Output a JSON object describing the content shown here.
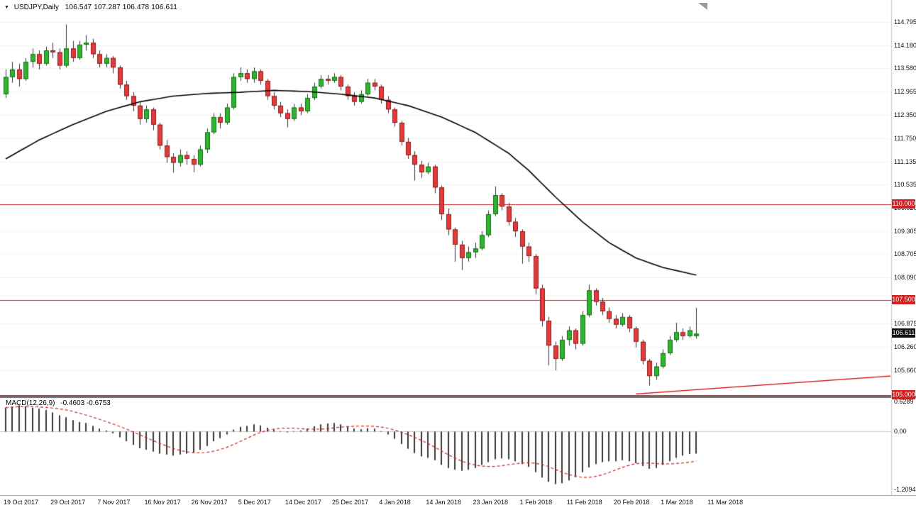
{
  "header": {
    "dropdown_icon": "▼",
    "symbol": "USDJPY,Daily",
    "ohlc": "106.547 107.287 106.478 106.611"
  },
  "indicator_label": {
    "name": "MACD(12,26,9)",
    "values": "-0.4603 -0.6753"
  },
  "colors": {
    "bull": "#2eb52e",
    "bull_border": "#157015",
    "bear": "#e23b3b",
    "bear_border": "#8f1b1b",
    "wick": "#333333",
    "ma": "#000000",
    "level_line": "#d21f1f",
    "trendline": "#cc0000",
    "tag_red_bg": "#d21f1f",
    "tag_current_bg": "#111111",
    "macd_hist": "#3a3a3a",
    "macd_signal": "#cc2222",
    "grid": "#f2f2f2",
    "separator": "#6b6b6b",
    "axis_border": "#999999"
  },
  "chart_data": {
    "type": "candlestick",
    "title": "USDJPY Daily with 100-period MA, horizontal levels, rising trendline and MACD(12,26,9)",
    "symbol": "USDJPY",
    "timeframe": "Daily",
    "last_ohlc": {
      "open": 106.547,
      "high": 107.287,
      "low": 106.478,
      "close": 106.611
    },
    "x_labels": [
      "19 Oct 2017",
      "29 Oct 2017",
      "7 Nov 2017",
      "16 Nov 2017",
      "26 Nov 2017",
      "5 Dec 2017",
      "14 Dec 2017",
      "25 Dec 2017",
      "4 Jan 2018",
      "14 Jan 2018",
      "23 Jan 2018",
      "1 Feb 2018",
      "11 Feb 2018",
      "20 Feb 2018",
      "1 Mar 2018",
      "11 Mar 2018"
    ],
    "candles_per_label": 7,
    "price_ticks": [
      "114.795",
      "114.180",
      "113.580",
      "112.965",
      "112.350",
      "111.750",
      "111.135",
      "110.535",
      "109.920",
      "109.305",
      "108.705",
      "108.090",
      "106.875",
      "106.260",
      "105.660"
    ],
    "level_lines": [
      {
        "price": 110.0,
        "label": "110.000"
      },
      {
        "price": 107.5,
        "label": "107.500"
      },
      {
        "price": 105.0,
        "label": "105.000"
      }
    ],
    "current_price": {
      "price": 106.611,
      "label": "106.611"
    },
    "trendline": {
      "from_index": 94,
      "from_price": 105.03,
      "to_price_at_right_edge": 105.5
    },
    "moving_average": {
      "style": "solid-black",
      "points": [
        [
          0,
          111.2
        ],
        [
          5,
          111.7
        ],
        [
          10,
          112.1
        ],
        [
          15,
          112.45
        ],
        [
          20,
          112.7
        ],
        [
          25,
          112.85
        ],
        [
          30,
          112.92
        ],
        [
          35,
          112.95
        ],
        [
          40,
          113.0
        ],
        [
          45,
          112.97
        ],
        [
          50,
          112.9
        ],
        [
          55,
          112.8
        ],
        [
          60,
          112.6
        ],
        [
          65,
          112.3
        ],
        [
          70,
          111.9
        ],
        [
          75,
          111.35
        ],
        [
          78,
          110.9
        ],
        [
          82,
          110.2
        ],
        [
          86,
          109.55
        ],
        [
          90,
          109.0
        ],
        [
          94,
          108.6
        ],
        [
          98,
          108.35
        ],
        [
          103,
          108.15
        ]
      ]
    },
    "candles": [
      [
        112.9,
        113.55,
        112.8,
        113.35
      ],
      [
        113.35,
        113.75,
        113.2,
        113.55
      ],
      [
        113.55,
        113.7,
        113.1,
        113.3
      ],
      [
        113.3,
        113.85,
        113.25,
        113.75
      ],
      [
        113.75,
        114.1,
        113.6,
        113.95
      ],
      [
        113.95,
        114.05,
        113.55,
        113.7
      ],
      [
        113.7,
        114.15,
        113.65,
        114.05
      ],
      [
        114.05,
        114.25,
        113.85,
        114.0
      ],
      [
        114.0,
        114.1,
        113.55,
        113.65
      ],
      [
        113.65,
        114.73,
        113.6,
        114.1
      ],
      [
        114.1,
        114.3,
        113.75,
        113.85
      ],
      [
        113.85,
        114.3,
        113.8,
        114.2
      ],
      [
        114.2,
        114.45,
        114.05,
        114.25
      ],
      [
        114.25,
        114.35,
        113.85,
        113.95
      ],
      [
        113.95,
        114.05,
        113.6,
        113.7
      ],
      [
        113.7,
        113.95,
        113.6,
        113.85
      ],
      [
        113.85,
        113.9,
        113.45,
        113.6
      ],
      [
        113.6,
        113.65,
        113.05,
        113.15
      ],
      [
        113.15,
        113.25,
        112.75,
        112.85
      ],
      [
        112.85,
        112.95,
        112.45,
        112.6
      ],
      [
        112.6,
        112.7,
        112.1,
        112.25
      ],
      [
        112.25,
        112.6,
        112.15,
        112.5
      ],
      [
        112.5,
        112.55,
        111.95,
        112.1
      ],
      [
        112.1,
        112.15,
        111.45,
        111.55
      ],
      [
        111.55,
        111.7,
        111.1,
        111.25
      ],
      [
        111.25,
        111.35,
        110.84,
        111.1
      ],
      [
        111.1,
        111.45,
        111.0,
        111.3
      ],
      [
        111.3,
        111.4,
        111.05,
        111.2
      ],
      [
        111.2,
        111.3,
        110.85,
        111.05
      ],
      [
        111.05,
        111.55,
        111.0,
        111.45
      ],
      [
        111.45,
        112.0,
        111.35,
        111.9
      ],
      [
        111.9,
        112.4,
        111.85,
        112.3
      ],
      [
        112.3,
        112.4,
        112.0,
        112.15
      ],
      [
        112.15,
        112.65,
        112.1,
        112.55
      ],
      [
        112.55,
        113.45,
        112.5,
        113.35
      ],
      [
        113.35,
        113.6,
        113.25,
        113.45
      ],
      [
        113.45,
        113.55,
        113.2,
        113.3
      ],
      [
        113.3,
        113.6,
        113.2,
        113.5
      ],
      [
        113.5,
        113.55,
        113.15,
        113.25
      ],
      [
        113.25,
        113.3,
        112.75,
        112.85
      ],
      [
        112.85,
        112.95,
        112.5,
        112.6
      ],
      [
        112.6,
        112.7,
        112.3,
        112.4
      ],
      [
        112.4,
        112.5,
        112.03,
        112.25
      ],
      [
        112.25,
        112.65,
        112.2,
        112.55
      ],
      [
        112.55,
        112.65,
        112.35,
        112.45
      ],
      [
        112.45,
        112.9,
        112.4,
        112.8
      ],
      [
        112.8,
        113.2,
        112.75,
        113.1
      ],
      [
        113.1,
        113.4,
        113.05,
        113.3
      ],
      [
        113.3,
        113.4,
        113.15,
        113.25
      ],
      [
        113.25,
        113.45,
        113.2,
        113.35
      ],
      [
        113.35,
        113.4,
        113.0,
        113.1
      ],
      [
        113.1,
        113.15,
        112.75,
        112.85
      ],
      [
        112.85,
        112.95,
        112.6,
        112.7
      ],
      [
        112.7,
        113.0,
        112.65,
        112.9
      ],
      [
        112.9,
        113.3,
        112.85,
        113.2
      ],
      [
        113.2,
        113.3,
        113.0,
        113.1
      ],
      [
        113.1,
        113.15,
        112.65,
        112.75
      ],
      [
        112.75,
        112.85,
        112.4,
        112.5
      ],
      [
        112.5,
        112.55,
        112.05,
        112.15
      ],
      [
        112.15,
        112.2,
        111.55,
        111.65
      ],
      [
        111.65,
        111.75,
        111.2,
        111.3
      ],
      [
        111.3,
        111.4,
        110.63,
        111.05
      ],
      [
        111.05,
        111.15,
        110.7,
        110.85
      ],
      [
        110.85,
        111.1,
        110.8,
        111.0
      ],
      [
        111.0,
        111.05,
        110.3,
        110.45
      ],
      [
        110.45,
        110.5,
        109.6,
        109.75
      ],
      [
        109.75,
        109.9,
        109.2,
        109.35
      ],
      [
        109.35,
        109.4,
        108.5,
        108.95
      ],
      [
        108.95,
        109.05,
        108.28,
        108.6
      ],
      [
        108.6,
        108.9,
        108.5,
        108.75
      ],
      [
        108.75,
        109.0,
        108.6,
        108.85
      ],
      [
        108.85,
        109.3,
        108.8,
        109.2
      ],
      [
        109.2,
        109.85,
        109.15,
        109.75
      ],
      [
        109.75,
        110.48,
        109.7,
        110.25
      ],
      [
        110.25,
        110.3,
        109.85,
        109.95
      ],
      [
        109.95,
        110.05,
        109.45,
        109.55
      ],
      [
        109.55,
        109.65,
        109.15,
        109.3
      ],
      [
        109.3,
        109.35,
        108.45,
        108.9
      ],
      [
        108.9,
        109.0,
        108.5,
        108.65
      ],
      [
        108.65,
        108.7,
        107.65,
        107.8
      ],
      [
        107.8,
        107.9,
        106.8,
        106.95
      ],
      [
        106.95,
        107.05,
        105.78,
        106.3
      ],
      [
        106.3,
        106.4,
        105.65,
        105.95
      ],
      [
        105.95,
        106.55,
        105.9,
        106.45
      ],
      [
        106.45,
        106.8,
        106.3,
        106.7
      ],
      [
        106.7,
        106.75,
        106.2,
        106.35
      ],
      [
        106.35,
        107.2,
        106.3,
        107.1
      ],
      [
        107.1,
        107.9,
        107.05,
        107.75
      ],
      [
        107.75,
        107.8,
        107.35,
        107.45
      ],
      [
        107.45,
        107.55,
        107.1,
        107.2
      ],
      [
        107.2,
        107.3,
        106.9,
        107.0
      ],
      [
        107.0,
        107.1,
        106.75,
        106.85
      ],
      [
        106.85,
        107.15,
        106.8,
        107.05
      ],
      [
        107.05,
        107.1,
        106.65,
        106.75
      ],
      [
        106.75,
        106.8,
        106.25,
        106.4
      ],
      [
        106.4,
        106.45,
        105.8,
        105.9
      ],
      [
        105.9,
        105.95,
        105.25,
        105.5
      ],
      [
        105.5,
        105.85,
        105.4,
        105.75
      ],
      [
        105.75,
        106.2,
        105.7,
        106.1
      ],
      [
        106.1,
        106.55,
        106.05,
        106.45
      ],
      [
        106.45,
        106.9,
        106.4,
        106.65
      ],
      [
        106.65,
        106.75,
        106.45,
        106.55
      ],
      [
        106.55,
        106.8,
        106.5,
        106.7
      ],
      [
        106.547,
        107.287,
        106.478,
        106.611
      ]
    ],
    "macd": {
      "label": "MACD(12,26,9)",
      "macd_value": -0.4603,
      "signal_value": -0.6753,
      "axis_labels": [
        {
          "v": 0.6289,
          "label": "0.6289"
        },
        {
          "v": 0.0,
          "label": "0.00"
        },
        {
          "v": -1.2094,
          "label": "-1.2094"
        }
      ],
      "histogram": [
        0.5,
        0.52,
        0.55,
        0.53,
        0.5,
        0.48,
        0.45,
        0.4,
        0.34,
        0.3,
        0.24,
        0.2,
        0.18,
        0.12,
        0.06,
        0.02,
        -0.04,
        -0.12,
        -0.2,
        -0.28,
        -0.35,
        -0.38,
        -0.42,
        -0.46,
        -0.48,
        -0.5,
        -0.48,
        -0.46,
        -0.44,
        -0.38,
        -0.3,
        -0.2,
        -0.14,
        -0.06,
        0.04,
        0.1,
        0.12,
        0.15,
        0.13,
        0.08,
        0.04,
        0.01,
        -0.02,
        0.01,
        0.02,
        0.06,
        0.11,
        0.15,
        0.17,
        0.18,
        0.15,
        0.1,
        0.06,
        0.05,
        0.07,
        0.06,
        0.01,
        -0.06,
        -0.15,
        -0.26,
        -0.36,
        -0.45,
        -0.52,
        -0.55,
        -0.6,
        -0.7,
        -0.76,
        -0.8,
        -0.82,
        -0.8,
        -0.76,
        -0.7,
        -0.64,
        -0.58,
        -0.56,
        -0.58,
        -0.62,
        -0.68,
        -0.74,
        -0.85,
        -0.96,
        -1.05,
        -1.1,
        -1.08,
        -1.02,
        -0.95,
        -0.85,
        -0.75,
        -0.68,
        -0.64,
        -0.62,
        -0.62,
        -0.6,
        -0.62,
        -0.66,
        -0.72,
        -0.78,
        -0.76,
        -0.7,
        -0.62,
        -0.55,
        -0.5,
        -0.47,
        -0.4603
      ]
    }
  }
}
